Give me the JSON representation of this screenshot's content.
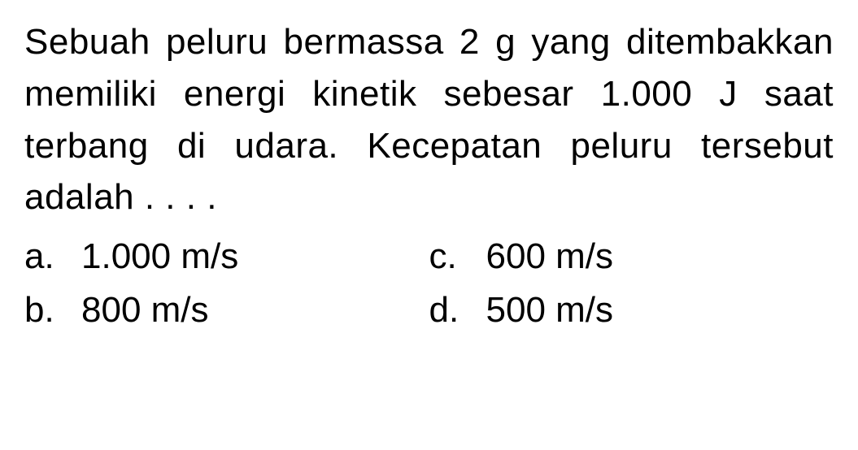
{
  "question": {
    "text": "Sebuah peluru bermassa 2 g yang ditembakkan memiliki energi kinetik sebesar 1.000 J saat terbang di udara. Kecepatan peluru tersebut adalah . . . ."
  },
  "options": {
    "a": {
      "letter": "a.",
      "value": "1.000 m/s"
    },
    "b": {
      "letter": "b.",
      "value": "800 m/s"
    },
    "c": {
      "letter": "c.",
      "value": "600 m/s"
    },
    "d": {
      "letter": "d.",
      "value": "500 m/s"
    }
  },
  "styling": {
    "background_color": "#ffffff",
    "text_color": "#000000",
    "font_size": 44,
    "line_height": 1.45,
    "font_family": "Arial, Helvetica, sans-serif"
  }
}
